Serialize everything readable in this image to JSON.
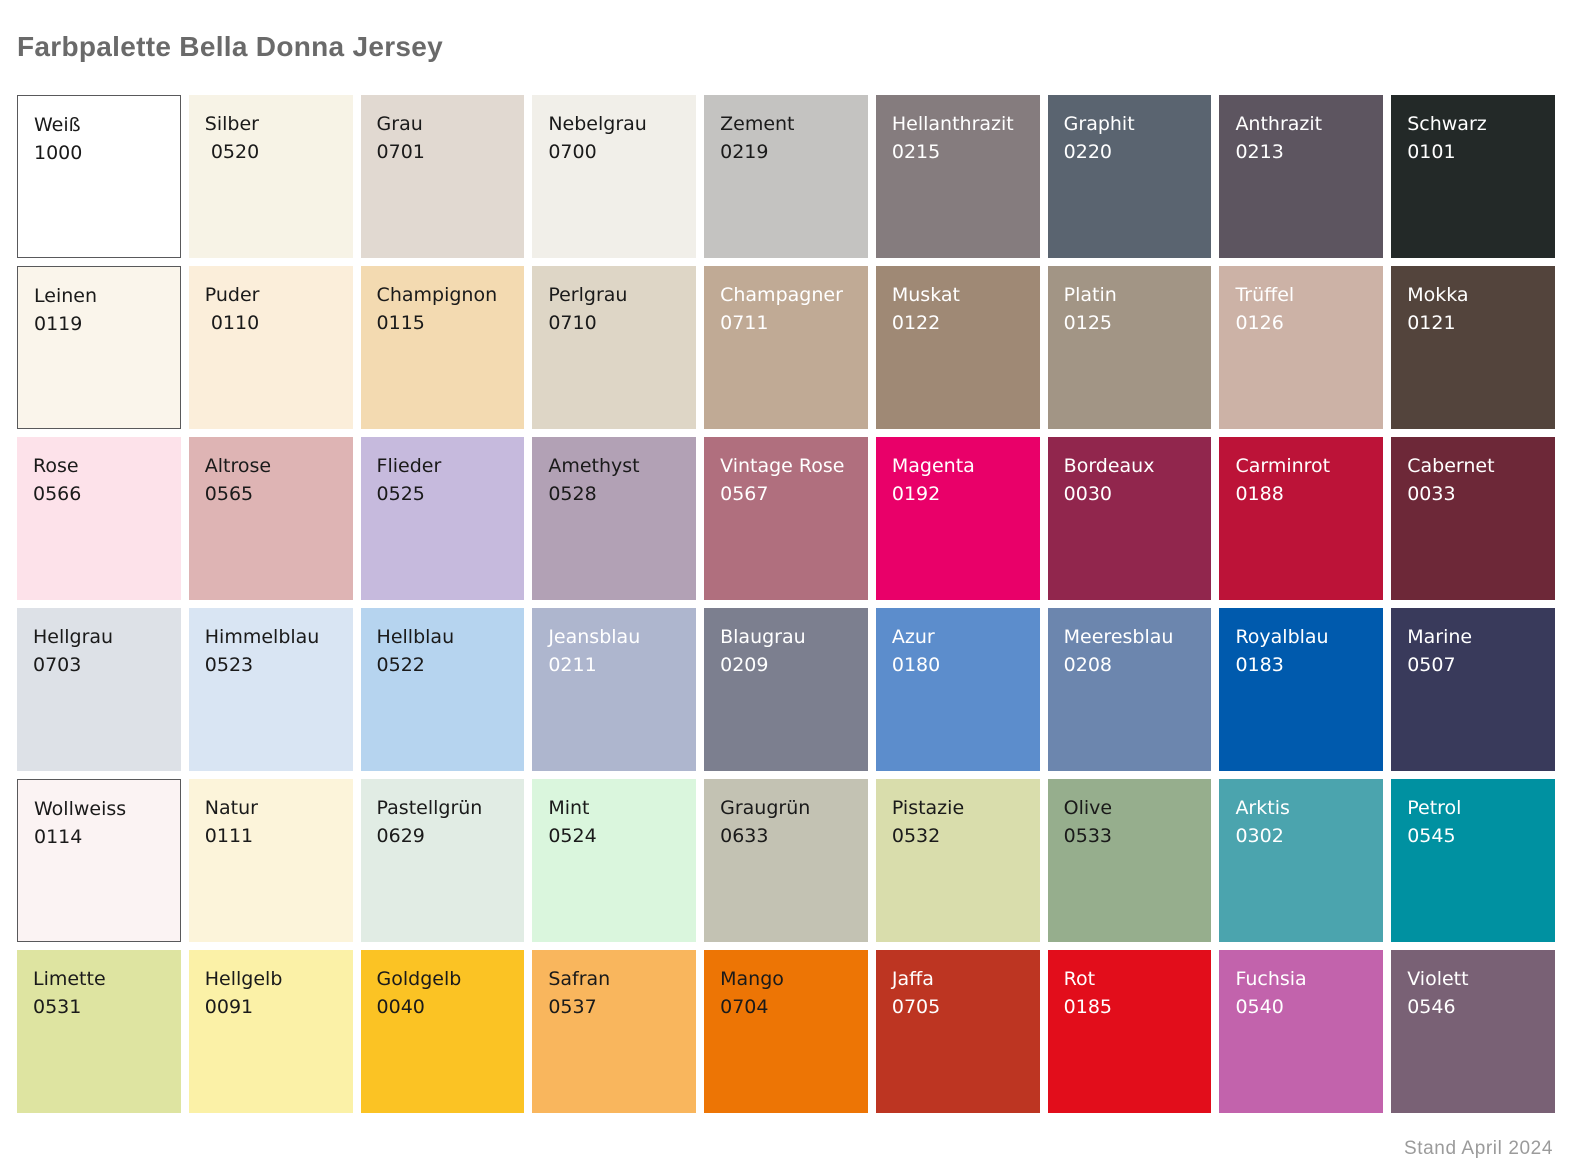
{
  "title": "Farbpalette Bella Donna Jersey",
  "footer": "Stand April 2024",
  "palette": {
    "rows": 6,
    "cols": 9,
    "border_color": "#59595b",
    "text_dark": "#1a1a1a",
    "text_light": "#ffffff",
    "swatches": [
      {
        "name": "Weiß",
        "code": "1000",
        "bg": "#ffffff",
        "text": "dark",
        "border": true
      },
      {
        "name": "Silber",
        "code": " 0520",
        "bg": "#f7f3e6",
        "text": "dark",
        "border": false
      },
      {
        "name": "Grau",
        "code": "0701",
        "bg": "#e1d9d1",
        "text": "dark",
        "border": false
      },
      {
        "name": "Nebelgrau",
        "code": "0700",
        "bg": "#f1efe9",
        "text": "dark",
        "border": false
      },
      {
        "name": "Zement",
        "code": "0219",
        "bg": "#c4c3c1",
        "text": "dark",
        "border": false
      },
      {
        "name": "Hellanthrazit",
        "code": "0215",
        "bg": "#857c7e",
        "text": "light",
        "border": false
      },
      {
        "name": "Graphit",
        "code": "0220",
        "bg": "#5a6470",
        "text": "light",
        "border": false
      },
      {
        "name": "Anthrazit",
        "code": "0213",
        "bg": "#5d5560",
        "text": "light",
        "border": false
      },
      {
        "name": "Schwarz",
        "code": "0101",
        "bg": "#232928",
        "text": "light",
        "border": false
      },
      {
        "name": "Leinen",
        "code": "0119",
        "bg": "#faf5eb",
        "text": "dark",
        "border": true
      },
      {
        "name": "Puder",
        "code": " 0110",
        "bg": "#fbeeda",
        "text": "dark",
        "border": false
      },
      {
        "name": "Champignon",
        "code": "0115",
        "bg": "#f3dab1",
        "text": "dark",
        "border": false
      },
      {
        "name": "Perlgrau",
        "code": "0710",
        "bg": "#ded6c6",
        "text": "dark",
        "border": false
      },
      {
        "name": "Champagner",
        "code": "0711",
        "bg": "#c0aa95",
        "text": "light",
        "border": false
      },
      {
        "name": "Muskat",
        "code": "0122",
        "bg": "#9f8975",
        "text": "light",
        "border": false
      },
      {
        "name": "Platin",
        "code": "0125",
        "bg": "#a29585",
        "text": "light",
        "border": false
      },
      {
        "name": "Trüffel",
        "code": "0126",
        "bg": "#ccb2a6",
        "text": "light",
        "border": false
      },
      {
        "name": "Mokka",
        "code": "0121",
        "bg": "#53443c",
        "text": "light",
        "border": false
      },
      {
        "name": "Rose",
        "code": "0566",
        "bg": "#fde2ea",
        "text": "dark",
        "border": false
      },
      {
        "name": "Altrose",
        "code": "0565",
        "bg": "#deb4b4",
        "text": "dark",
        "border": false
      },
      {
        "name": "Flieder",
        "code": "0525",
        "bg": "#c6badd",
        "text": "dark",
        "border": false
      },
      {
        "name": "Amethyst",
        "code": "0528",
        "bg": "#b2a1b5",
        "text": "dark",
        "border": false
      },
      {
        "name": "Vintage Rose",
        "code": "0567",
        "bg": "#b06f7e",
        "text": "light",
        "border": false
      },
      {
        "name": "Magenta",
        "code": "0192",
        "bg": "#e90069",
        "text": "light",
        "border": false
      },
      {
        "name": "Bordeaux",
        "code": "0030",
        "bg": "#91264d",
        "text": "light",
        "border": false
      },
      {
        "name": "Carminrot",
        "code": "0188",
        "bg": "#bc1338",
        "text": "light",
        "border": false
      },
      {
        "name": "Cabernet",
        "code": "0033",
        "bg": "#6d2838",
        "text": "light",
        "border": false
      },
      {
        "name": "Hellgrau",
        "code": "0703",
        "bg": "#dde1e7",
        "text": "dark",
        "border": false
      },
      {
        "name": "Himmelblau",
        "code": "0523",
        "bg": "#d9e5f3",
        "text": "dark",
        "border": false
      },
      {
        "name": "Hellblau",
        "code": "0522",
        "bg": "#b6d4ef",
        "text": "dark",
        "border": false
      },
      {
        "name": "Jeansblau",
        "code": "0211",
        "bg": "#aeb6ce",
        "text": "light",
        "border": false
      },
      {
        "name": "Blaugrau",
        "code": "0209",
        "bg": "#7c7f8f",
        "text": "light",
        "border": false
      },
      {
        "name": "Azur",
        "code": "0180",
        "bg": "#5c8dcc",
        "text": "light",
        "border": false
      },
      {
        "name": "Meeresblau",
        "code": "0208",
        "bg": "#6c86ae",
        "text": "light",
        "border": false
      },
      {
        "name": "Royalblau",
        "code": "0183",
        "bg": "#005aad",
        "text": "light",
        "border": false
      },
      {
        "name": "Marine",
        "code": "0507",
        "bg": "#393a5b",
        "text": "light",
        "border": false
      },
      {
        "name": "Wollweiss",
        "code": "0114",
        "bg": "#fbf3f3",
        "text": "dark",
        "border": true
      },
      {
        "name": "Natur",
        "code": "0111",
        "bg": "#fcf4da",
        "text": "dark",
        "border": false
      },
      {
        "name": "Pastellgrün",
        "code": "0629",
        "bg": "#e1ece4",
        "text": "dark",
        "border": false
      },
      {
        "name": "Mint",
        "code": "0524",
        "bg": "#daf6dd",
        "text": "dark",
        "border": false
      },
      {
        "name": "Graugrün",
        "code": "0633",
        "bg": "#c3c2b3",
        "text": "dark",
        "border": false
      },
      {
        "name": "Pistazie",
        "code": "0532",
        "bg": "#d9ddac",
        "text": "dark",
        "border": false
      },
      {
        "name": "Olive",
        "code": "0533",
        "bg": "#96ae8d",
        "text": "dark",
        "border": false
      },
      {
        "name": "Arktis",
        "code": "0302",
        "bg": "#4ba4ae",
        "text": "light",
        "border": false
      },
      {
        "name": "Petrol",
        "code": "0545",
        "bg": "#0091a1",
        "text": "light",
        "border": false
      },
      {
        "name": "Limette",
        "code": "0531",
        "bg": "#dee4a1",
        "text": "dark",
        "border": false
      },
      {
        "name": "Hellgelb",
        "code": "0091",
        "bg": "#fbf1a7",
        "text": "dark",
        "border": false
      },
      {
        "name": "Goldgelb",
        "code": "0040",
        "bg": "#fbc324",
        "text": "dark",
        "border": false
      },
      {
        "name": "Safran",
        "code": "0537",
        "bg": "#f9b65d",
        "text": "dark",
        "border": false
      },
      {
        "name": "Mango",
        "code": "0704",
        "bg": "#ed7505",
        "text": "dark",
        "border": false
      },
      {
        "name": "Jaffa",
        "code": "0705",
        "bg": "#bd3522",
        "text": "light",
        "border": false
      },
      {
        "name": "Rot",
        "code": "0185",
        "bg": "#e20d1b",
        "text": "light",
        "border": false
      },
      {
        "name": "Fuchsia",
        "code": "0540",
        "bg": "#c263ac",
        "text": "light",
        "border": false
      },
      {
        "name": "Violett",
        "code": "0546",
        "bg": "#796175",
        "text": "light",
        "border": false
      }
    ]
  }
}
